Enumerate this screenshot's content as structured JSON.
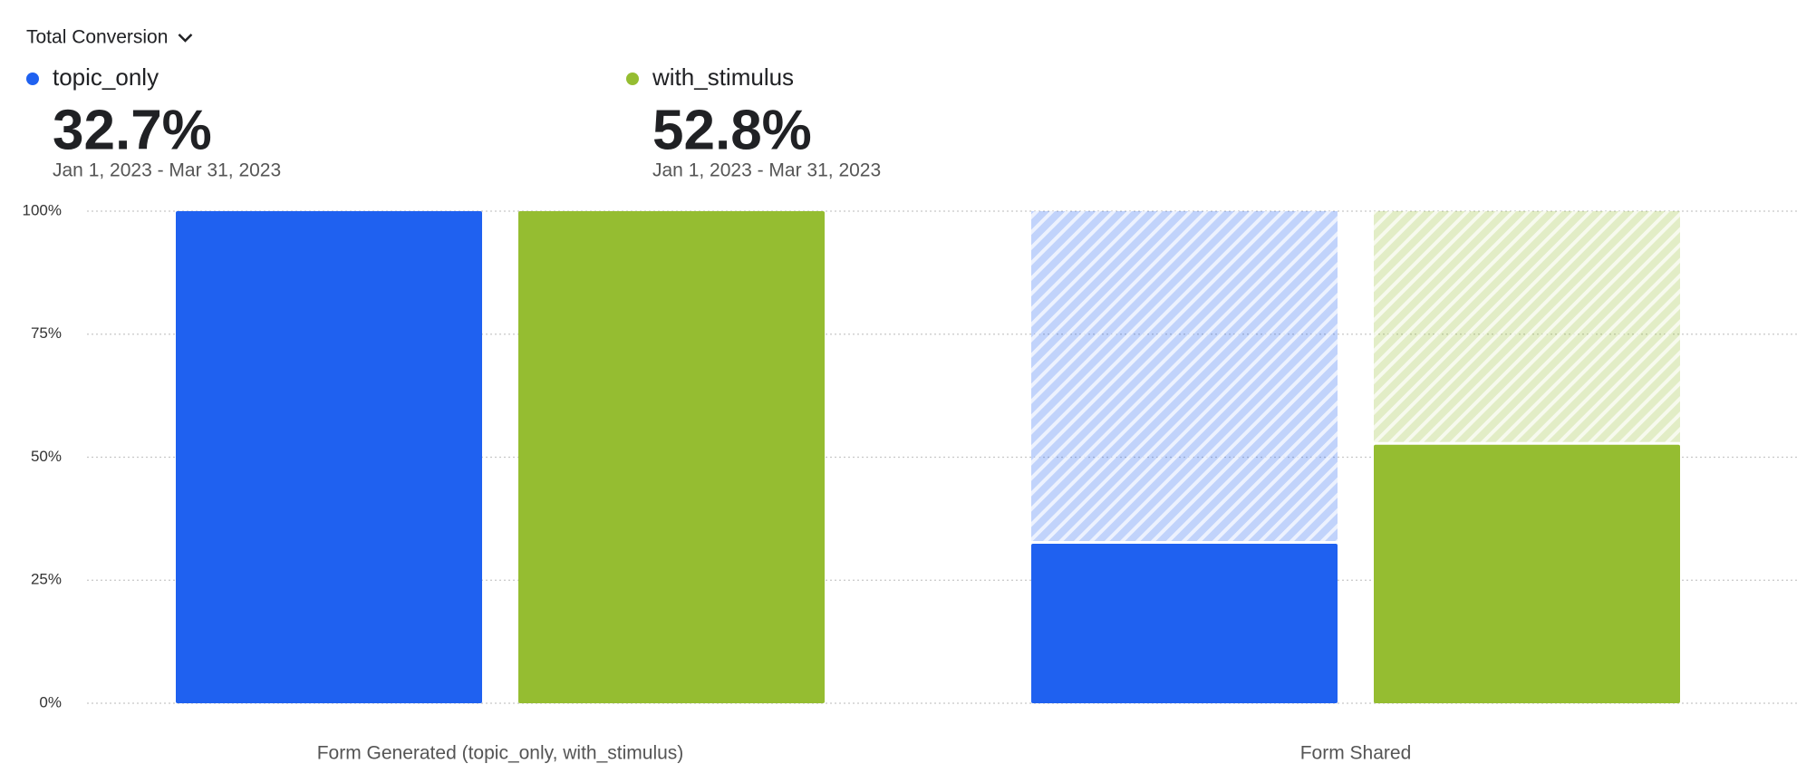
{
  "chart_data": {
    "type": "bar",
    "title": "Total Conversion",
    "categories": [
      "Form Generated (topic_only, with_stimulus)",
      "Form Shared"
    ],
    "series": [
      {
        "name": "topic_only",
        "color": "#1f61f0",
        "values": [
          100,
          32.7
        ],
        "summary": "32.7%",
        "date_range": "Jan 1, 2023 - Mar 31, 2023"
      },
      {
        "name": "with_stimulus",
        "color": "#95bd31",
        "values": [
          100,
          52.8
        ],
        "summary": "52.8%",
        "date_range": "Jan 1, 2023 - Mar 31, 2023"
      }
    ],
    "ylim": [
      0,
      100
    ],
    "yticks": [
      {
        "value": 0,
        "label": "0%"
      },
      {
        "value": 25,
        "label": "25%"
      },
      {
        "value": 50,
        "label": "50%"
      },
      {
        "value": 75,
        "label": "75%"
      },
      {
        "value": 100,
        "label": "100%"
      }
    ],
    "grid": true
  }
}
